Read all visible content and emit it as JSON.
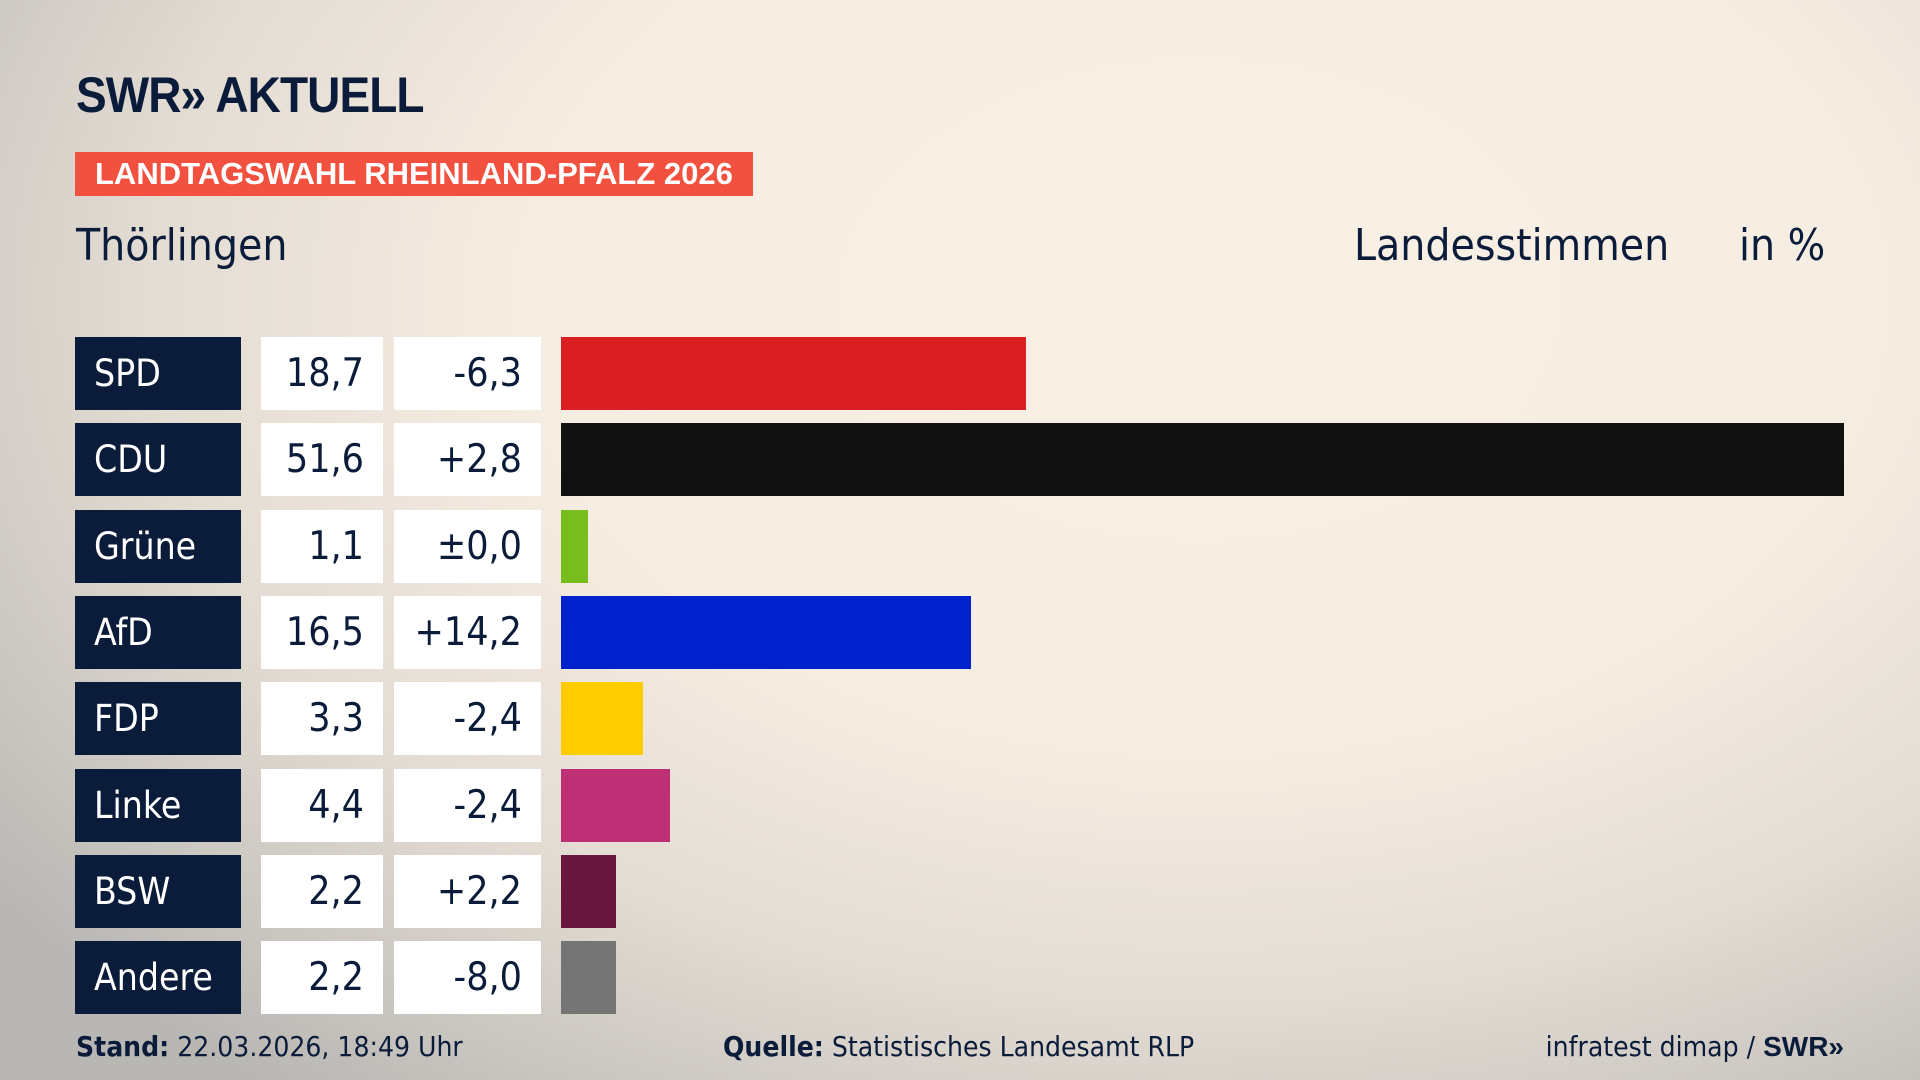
{
  "header": {
    "logo": "SWR» AKTUELL",
    "badge": "LANDTAGSWAHL RHEINLAND-PFALZ 2026",
    "place": "Thörlingen",
    "measure": "Landesstimmen",
    "unit": "in %"
  },
  "chart_data": {
    "type": "bar",
    "orientation": "horizontal",
    "unit": "%",
    "xlim": [
      0,
      51.6
    ],
    "categories": [
      "SPD",
      "CDU",
      "Grüne",
      "AfD",
      "FDP",
      "Linke",
      "BSW",
      "Andere"
    ],
    "values": [
      18.7,
      51.6,
      1.1,
      16.5,
      3.3,
      4.4,
      2.2,
      2.2
    ],
    "value_labels": [
      "18,7",
      "51,6",
      "1,1",
      "16,5",
      "3,3",
      "4,4",
      "2,2",
      "2,2"
    ],
    "diff_labels": [
      "-6,3",
      "+2,8",
      "±0,0",
      "+14,2",
      "-2,4",
      "-2,4",
      "+2,2",
      "-8,0"
    ],
    "colors": [
      "#d91f21",
      "#111111",
      "#76bd1d",
      "#0022cc",
      "#ffcc00",
      "#be3075",
      "#6a1740",
      "#757575"
    ]
  },
  "footer": {
    "stand_label": "Stand:",
    "stand_value": "22.03.2026, 18:49 Uhr",
    "source_label": "Quelle:",
    "source_value": "Statistisches Landesamt RLP",
    "credit": "infratest dimap /",
    "credit_logo": "SWR»"
  }
}
